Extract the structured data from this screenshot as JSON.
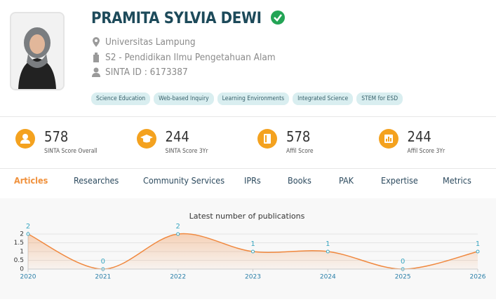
{
  "profile": {
    "name": "PRAMITA SYLVIA DEWI",
    "affiliation": "Universitas Lampung",
    "program": "S2 - Pendidikan Ilmu Pengetahuan Alam",
    "sinta_id": "SINTA ID : 6173387",
    "tags": [
      "Science Education",
      "Web-based Inquiry",
      "Learning Environments",
      "Integrated Science",
      "STEM for ESD"
    ]
  },
  "scores": [
    {
      "value": 578,
      "label": "SINTA Score Overall"
    },
    {
      "value": 244,
      "label": "SINTA Score 3Yr"
    },
    {
      "value": 578,
      "label": "Affil Score"
    },
    {
      "value": 244,
      "label": "Affil Score 3Yr"
    }
  ],
  "tabs": [
    "Articles",
    "Researches",
    "Community Services",
    "IPRs",
    "Books",
    "PAK",
    "Expertise",
    "Metrics"
  ],
  "chart_data": {
    "type": "line",
    "title": "Latest number of publications",
    "x": [
      2020,
      2021,
      2022,
      2023,
      2024,
      2025,
      2026
    ],
    "values": [
      2,
      0,
      2,
      1,
      1,
      0,
      1
    ],
    "color": "#f0883e",
    "label_color": "#3aa6c1",
    "xlim": [
      2020,
      2026
    ],
    "ylim": [
      0,
      2
    ],
    "yticks": [
      0,
      0.5,
      1,
      1.5,
      2
    ],
    "grid": true
  }
}
